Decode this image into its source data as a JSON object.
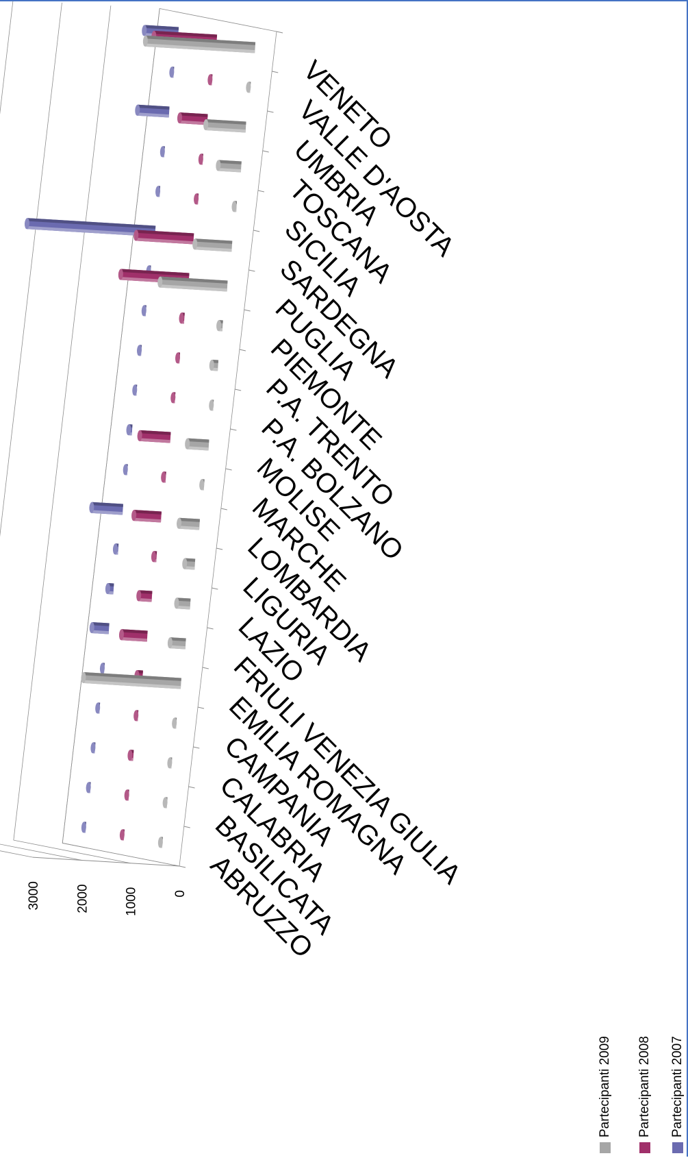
{
  "chart_data": {
    "type": "bar",
    "title": "",
    "xlabel": "",
    "ylabel": "",
    "ylim": [
      0,
      3000
    ],
    "yticks": [
      0,
      1000,
      2000,
      3000
    ],
    "y_tick_labels": [
      "0",
      "1000",
      "2000",
      "3000"
    ],
    "categories": [
      "ABRUZZO",
      "BASILICATA",
      "CALABRIA",
      "CAMPANIA",
      "EMILIA ROMAGNA",
      "FRIULI VENEZIA GIULIA",
      "LAZIO",
      "LIGURIA",
      "LOMBARDIA",
      "MARCHE",
      "MOLISE",
      "P.A. BOLZANO",
      "P.A. TRENTO",
      "PIEMONTE",
      "PUGLIA",
      "SARDEGNA",
      "SICILIA",
      "TOSCANA",
      "UMBRIA",
      "VALLE D'AOSTA",
      "VENETO"
    ],
    "series": [
      {
        "name": "Partecipanti 2009",
        "color": "#a6a6a6",
        "values": [
          10,
          5,
          30,
          20,
          2000,
          320,
          280,
          210,
          420,
          50,
          440,
          30,
          130,
          80,
          1380,
          760,
          50,
          470,
          820,
          40,
          2250
        ]
      },
      {
        "name": "Partecipanti 2008",
        "color": "#a0306a",
        "values": [
          5,
          20,
          70,
          20,
          120,
          530,
          270,
          60,
          560,
          50,
          630,
          40,
          30,
          60,
          1400,
          1180,
          20,
          20,
          570,
          30,
          1290
        ]
      },
      {
        "name": "Partecipanti 2007",
        "color": "#6b6bb0",
        "values": [
          10,
          20,
          5,
          15,
          40,
          350,
          120,
          60,
          640,
          20,
          70,
          20,
          20,
          40,
          40,
          2630,
          10,
          20,
          650,
          20,
          700
        ]
      }
    ],
    "legend_position": "bottom",
    "grid": true
  }
}
